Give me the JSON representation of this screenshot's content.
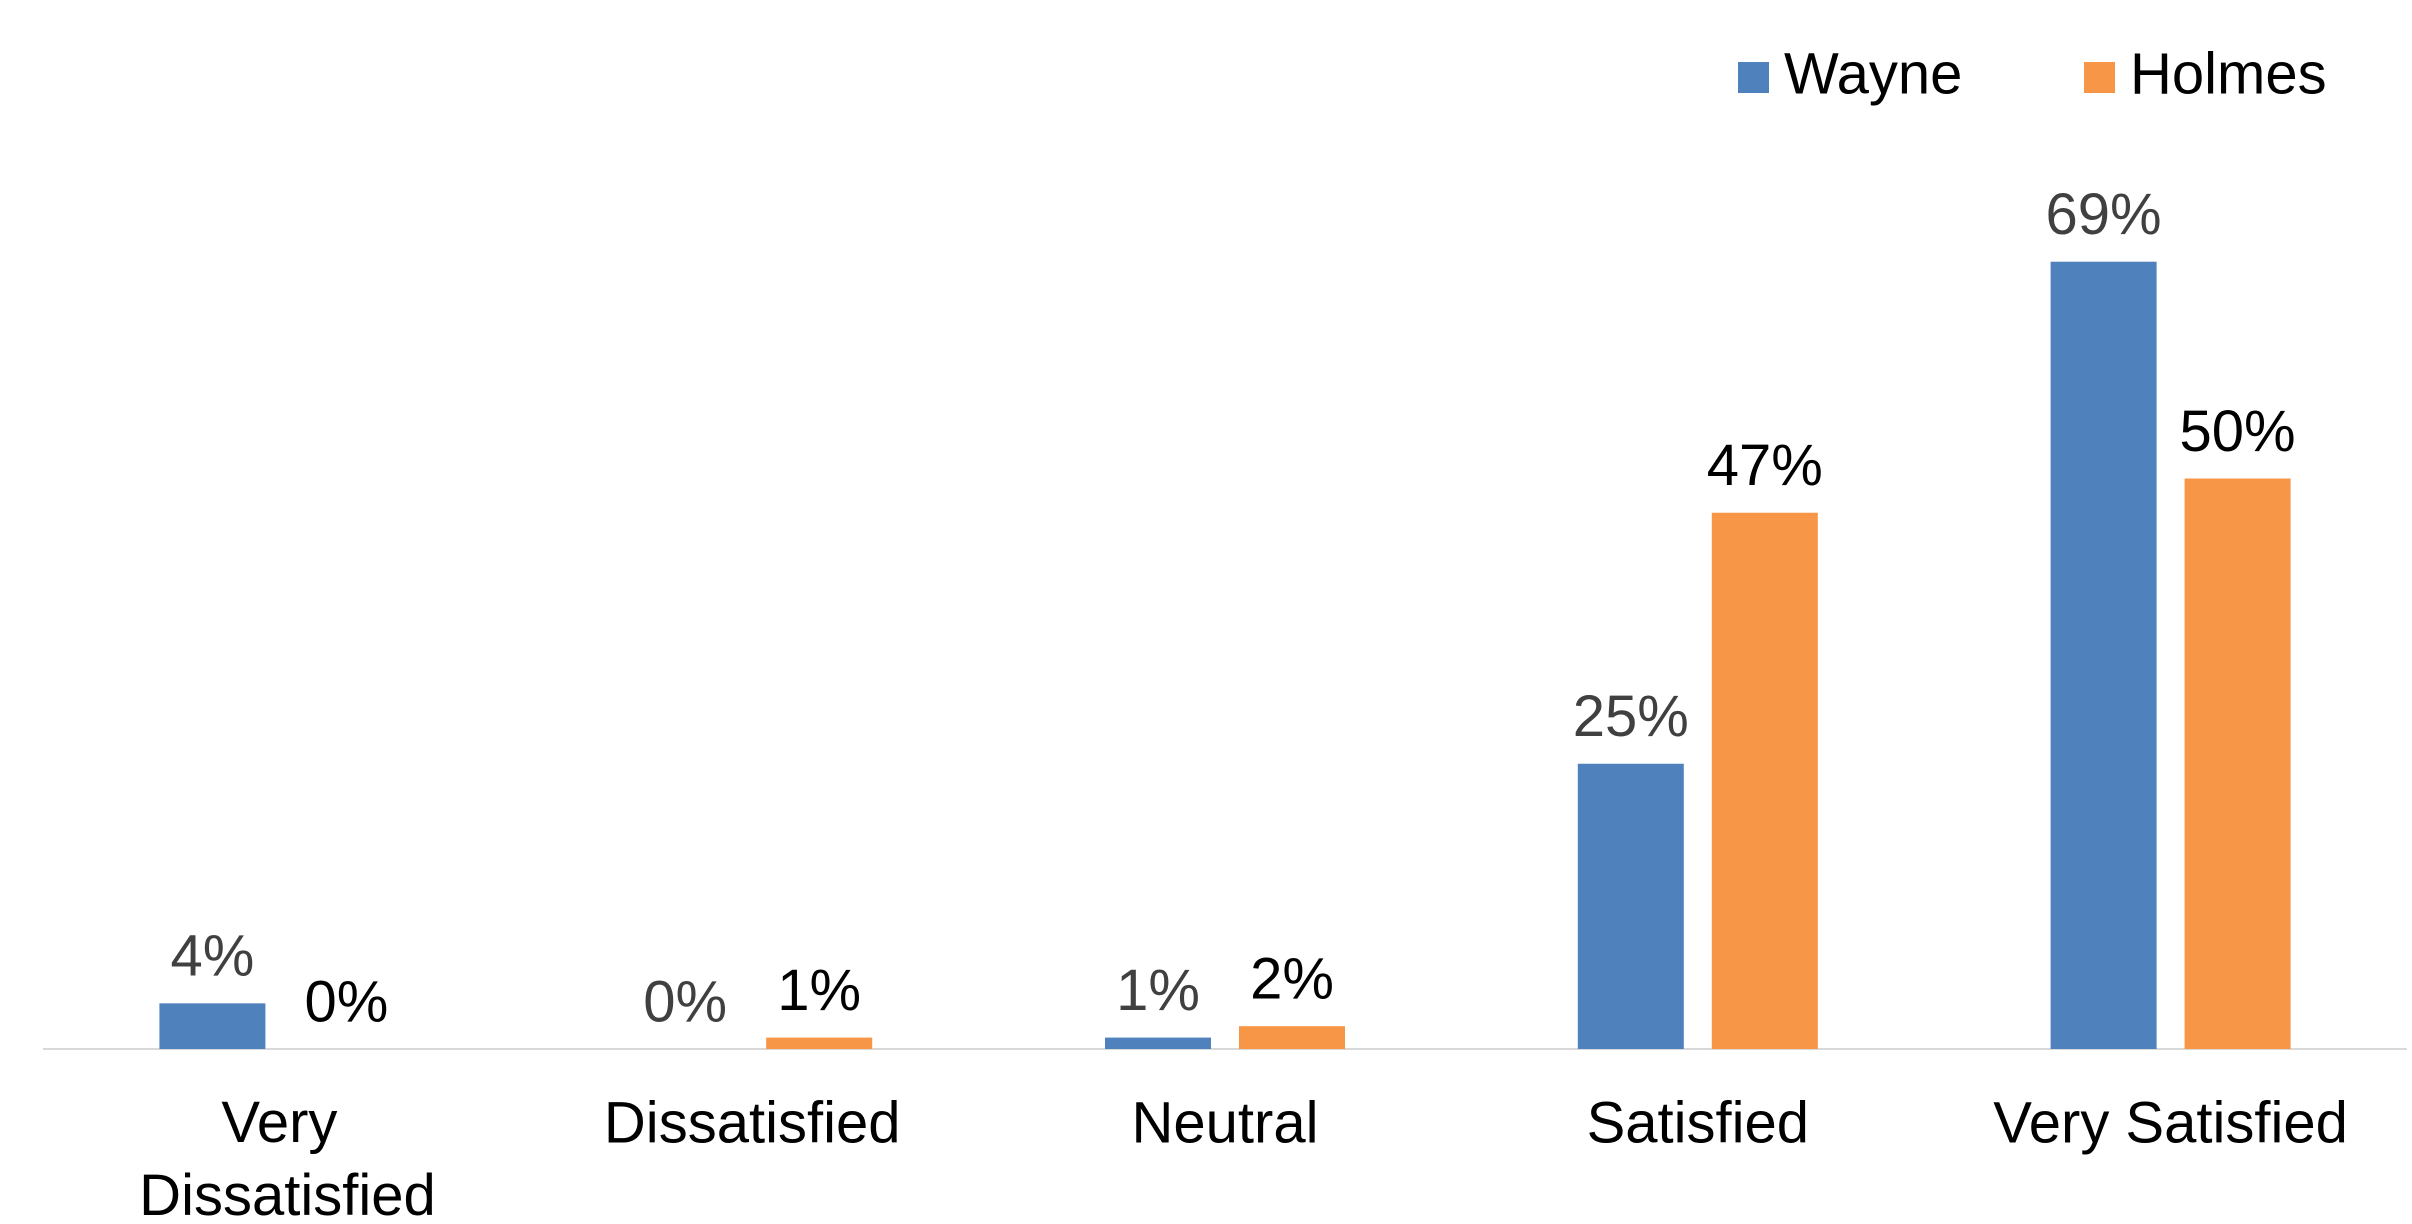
{
  "chart_data": {
    "type": "bar",
    "categories": [
      "Very Dissatisfied",
      "Dissatisfied",
      "Neutral",
      "Satisfied",
      "Very Satisfied"
    ],
    "series": [
      {
        "name": "Wayne",
        "color": "#4f81bd",
        "label_color": "#404040",
        "values": [
          4,
          0,
          1,
          25,
          69
        ],
        "value_labels": [
          "4%",
          "0%",
          "1%",
          "25%",
          "69%"
        ]
      },
      {
        "name": "Holmes",
        "color": "#f79646",
        "label_color": "#000000",
        "values": [
          0,
          1,
          2,
          47,
          50
        ],
        "value_labels": [
          "0%",
          "1%",
          "2%",
          "47%",
          "50%"
        ]
      }
    ],
    "legend": "top-right"
  }
}
